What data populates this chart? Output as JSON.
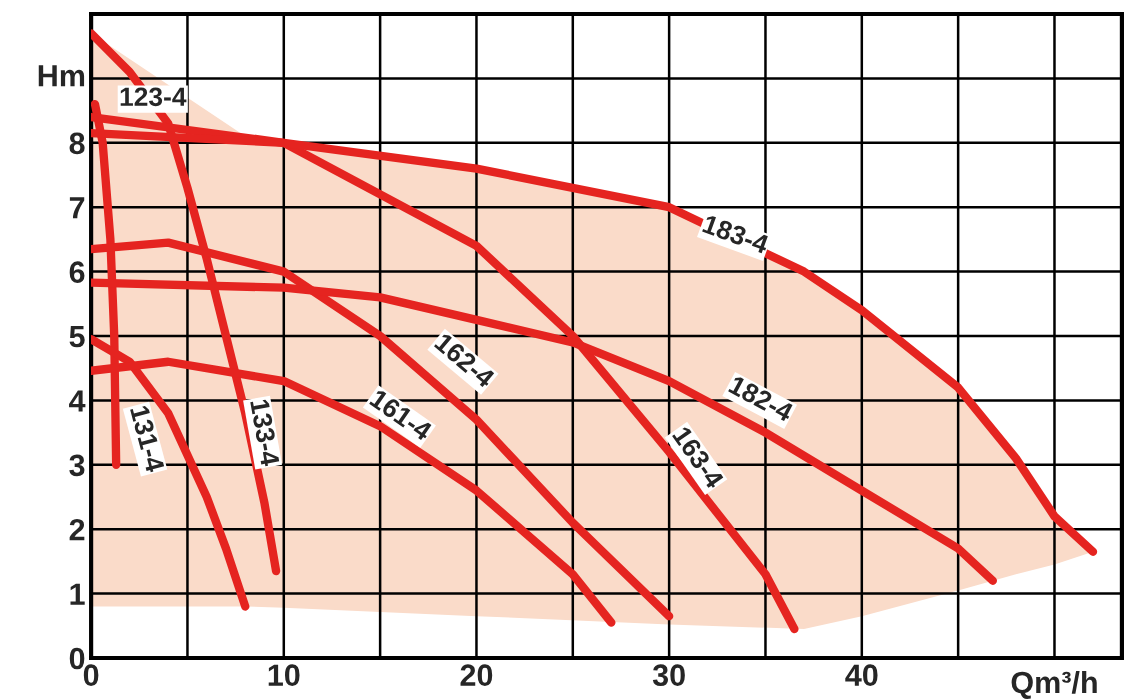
{
  "chart_data": {
    "type": "line",
    "xlabel": "Qm³/h",
    "ylabel": "Hm",
    "xlim": [
      0,
      53.5
    ],
    "ylim": [
      0,
      10
    ],
    "xticks": [
      0,
      {
        "value": 5,
        "label": null
      },
      10,
      {
        "value": 15,
        "label": null
      },
      20,
      {
        "value": 25,
        "label": null
      },
      30,
      {
        "value": 35,
        "label": null
      },
      40,
      {
        "value": 45,
        "label": null
      },
      {
        "value": 50,
        "label": null
      }
    ],
    "yticks": [
      0,
      1,
      2,
      3,
      4,
      5,
      6,
      7,
      8,
      {
        "value": 9,
        "label": null
      }
    ],
    "grid": true,
    "marker": "none",
    "line_style": "solid",
    "series": [
      {
        "type": "area",
        "color": "#fadbc9",
        "x": [
          0,
          8,
          10,
          20,
          30,
          37,
          40,
          45,
          48,
          50,
          52
        ],
        "values": [
          9.7,
          8.1,
          8.0,
          7.6,
          7.0,
          6.0,
          5.4,
          4.2,
          3.1,
          2.2,
          1.65
        ]
      },
      {
        "type": "area",
        "color": "#ffffff",
        "x": [
          0,
          8,
          10,
          20,
          30,
          37,
          40,
          45,
          48,
          50,
          52,
          53.5
        ],
        "values": [
          0.8,
          0.8,
          0.78,
          0.65,
          0.52,
          0.45,
          0.65,
          1.05,
          1.3,
          1.45,
          1.65,
          1.65
        ]
      },
      {
        "name": "123-4",
        "color": "#e52420",
        "x": [
          0.2,
          0.6,
          1.0,
          1.2,
          1.3
        ],
        "values": [
          8.6,
          8.0,
          6.5,
          5.0,
          3.0
        ]
      },
      {
        "name": "131-4",
        "color": "#e52420",
        "x": [
          0,
          2,
          4,
          6,
          7,
          8
        ],
        "values": [
          4.95,
          4.6,
          3.8,
          2.5,
          1.7,
          0.8
        ]
      },
      {
        "name": "133-4",
        "color": "#e52420",
        "x": [
          0,
          2,
          4,
          5,
          6,
          7,
          8,
          9,
          9.6
        ],
        "values": [
          9.7,
          9.1,
          8.3,
          7.3,
          6.2,
          5.0,
          3.8,
          2.4,
          1.35
        ]
      },
      {
        "name": "161-4",
        "color": "#e52420",
        "x": [
          0,
          4,
          10,
          15,
          20,
          25,
          27
        ],
        "values": [
          4.46,
          4.6,
          4.3,
          3.6,
          2.6,
          1.3,
          0.55
        ]
      },
      {
        "name": "162-4",
        "color": "#e52420",
        "x": [
          0,
          4,
          10,
          15,
          20,
          25,
          30
        ],
        "values": [
          6.35,
          6.45,
          6.0,
          5.0,
          3.7,
          2.1,
          0.65
        ]
      },
      {
        "name": "163-4",
        "color": "#e52420",
        "x": [
          0,
          10,
          20,
          25,
          30,
          35,
          36.5
        ],
        "values": [
          8.4,
          8.0,
          6.4,
          5.0,
          3.2,
          1.3,
          0.45
        ]
      },
      {
        "name": "182-4",
        "color": "#e52420",
        "x": [
          0,
          10,
          15,
          20,
          25,
          30,
          35,
          40,
          45,
          46.8
        ],
        "values": [
          5.83,
          5.75,
          5.6,
          5.25,
          4.9,
          4.3,
          3.5,
          2.6,
          1.7,
          1.2
        ]
      },
      {
        "name": "183-4",
        "color": "#e52420",
        "x": [
          0,
          10,
          20,
          30,
          37,
          40,
          45,
          48,
          50,
          52
        ],
        "values": [
          8.15,
          8.0,
          7.6,
          7.0,
          6.0,
          5.4,
          4.2,
          3.1,
          2.2,
          1.65
        ]
      }
    ]
  }
}
